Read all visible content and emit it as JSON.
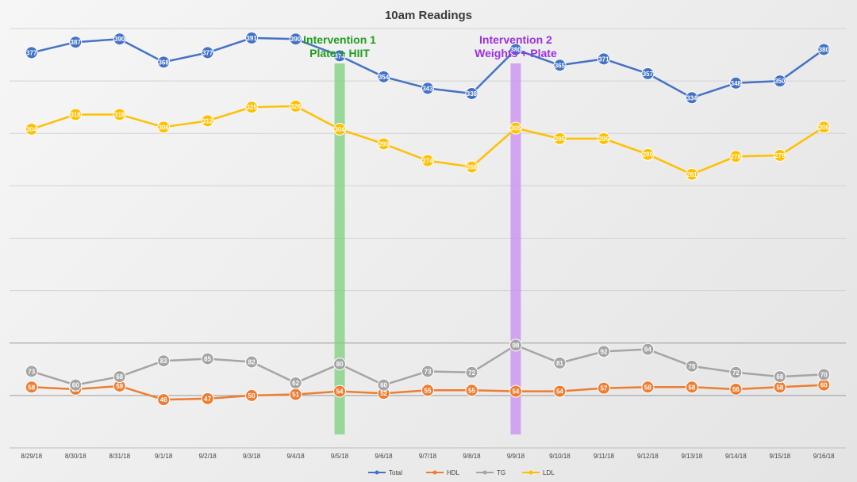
{
  "chart_data": {
    "type": "line",
    "title": "10am Readings",
    "categories": [
      "8/29/18",
      "8/30/18",
      "8/31/18",
      "9/1/18",
      "9/2/18",
      "9/3/18",
      "9/4/18",
      "9/5/18",
      "9/6/18",
      "9/7/18",
      "9/8/18",
      "9/9/18",
      "9/10/18",
      "9/11/18",
      "9/12/18",
      "9/13/18",
      "9/14/18",
      "9/15/18",
      "9/16/18"
    ],
    "ylim": [
      0,
      400
    ],
    "grid": true,
    "legend_position": "bottom",
    "series": [
      {
        "name": "Total",
        "color": "#4472c4",
        "values": [
          377,
          387,
          390,
          368,
          377,
          391,
          390,
          374,
          354,
          343,
          338,
          380,
          365,
          371,
          357,
          334,
          348,
          350,
          380
        ]
      },
      {
        "name": "HDL",
        "color": "#ed7d31",
        "values": [
          58,
          56,
          59,
          46,
          47,
          50,
          51,
          54,
          52,
          55,
          55,
          54,
          54,
          57,
          58,
          58,
          56,
          58,
          60
        ]
      },
      {
        "name": "TG",
        "color": "#a5a5a5",
        "values": [
          73,
          60,
          68,
          83,
          85,
          82,
          62,
          80,
          60,
          73,
          72,
          98,
          81,
          92,
          94,
          78,
          72,
          68,
          70
        ]
      },
      {
        "name": "LDL",
        "color": "#ffc000",
        "values": [
          304,
          318,
          318,
          306,
          312,
          325,
          326,
          304,
          290,
          274,
          268,
          305,
          295,
          295,
          280,
          261,
          278,
          279,
          306
        ]
      }
    ],
    "annotations": [
      {
        "lines": [
          "Intervention 1",
          "Plate + HIIT"
        ],
        "at": "9/5/18",
        "color": "#1f9e1f",
        "band_color": "#7ecf7e"
      },
      {
        "lines": [
          "Intervention 2",
          "Weights + Plate"
        ],
        "at": "9/9/18",
        "color": "#9b30e0",
        "band_color": "#c98cf0"
      }
    ]
  }
}
